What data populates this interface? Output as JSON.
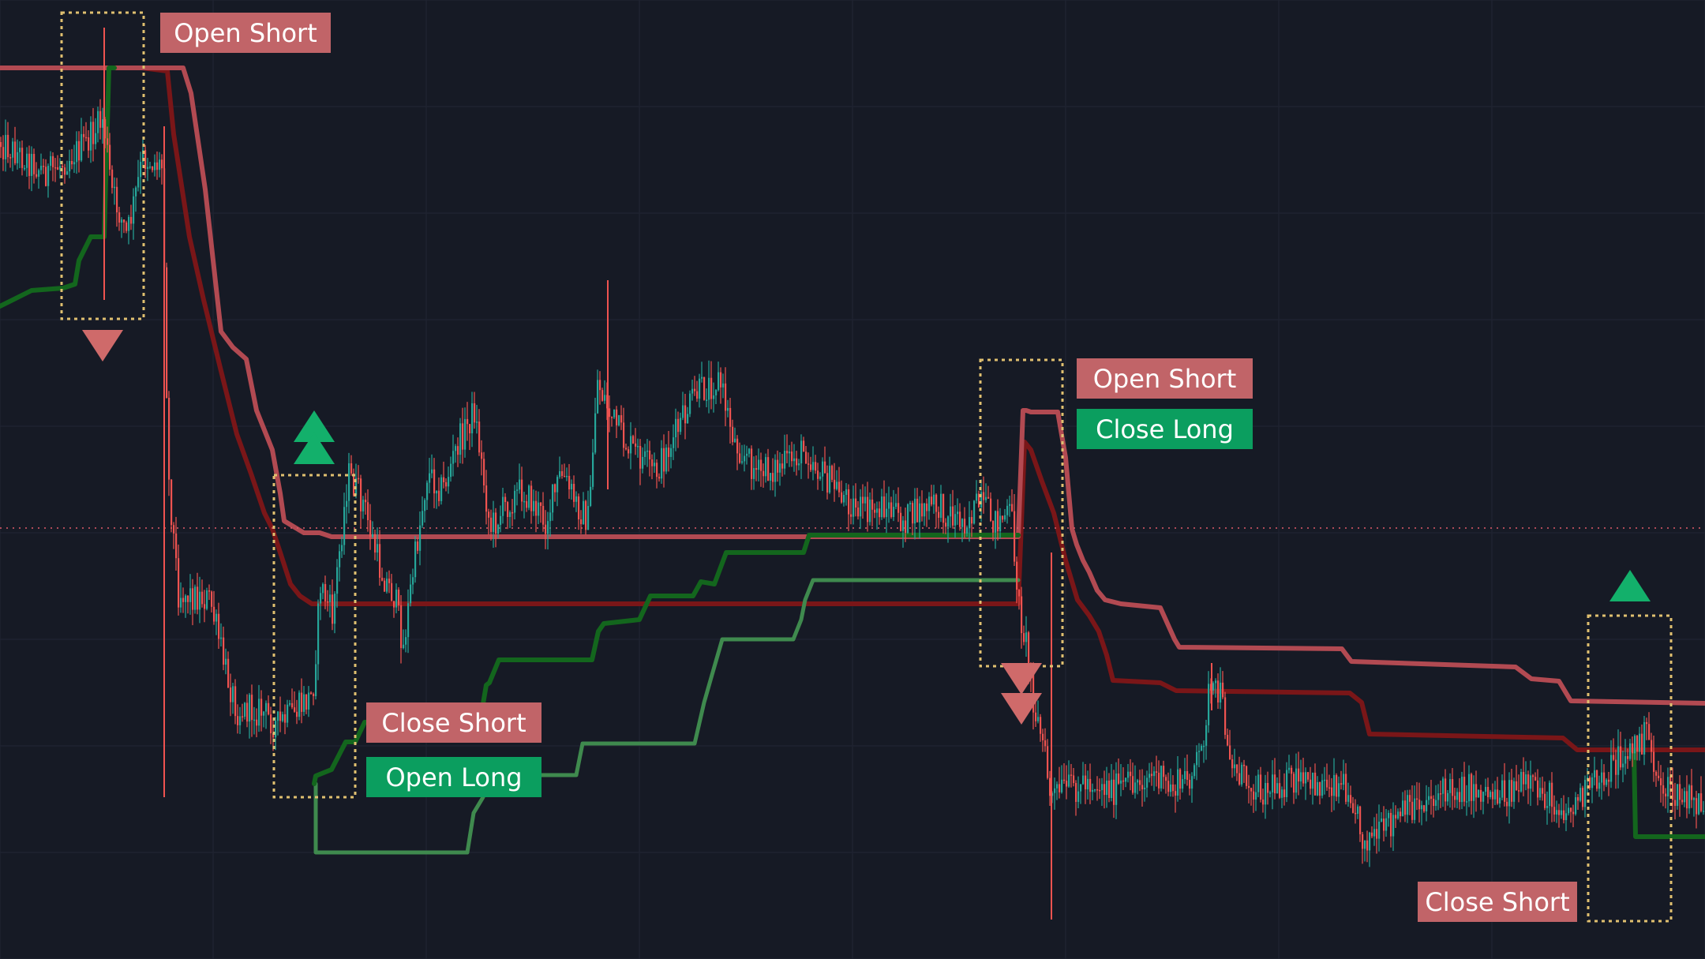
{
  "theme": {
    "background": "#161a25",
    "grid": "#1f2330",
    "up_candle": "#26a69a",
    "down_candle": "#ef5350",
    "bright_red": "#b24a52",
    "dark_red": "#7a1618",
    "bright_green": "#3f8a4e",
    "dark_green": "#13661d",
    "box_border": "#e0c070",
    "signal_red": "#cf6a6a",
    "signal_green": "#13b06b",
    "label_red_bg": "#c16468",
    "label_green_bg": "#0b9e5f",
    "label_text": "#ffffff"
  },
  "labels": [
    {
      "text": "Open Short",
      "kind": "red"
    },
    {
      "text": "Open Short",
      "kind": "red"
    },
    {
      "text": "Close Long",
      "kind": "green"
    },
    {
      "text": "Close Short",
      "kind": "red"
    },
    {
      "text": "Open Long",
      "kind": "green"
    },
    {
      "text": "Close Short",
      "kind": "red"
    }
  ],
  "chart_data": {
    "type": "candlestick",
    "title": "",
    "grid": true,
    "series": [
      {
        "style": "candles"
      },
      {
        "style": "upper-band-bright",
        "color": "#b24a52"
      },
      {
        "style": "upper-band-dark",
        "color": "#7a1618"
      },
      {
        "style": "lower-band-bright",
        "color": "#3f8a4e"
      },
      {
        "style": "lower-band-dark",
        "color": "#13661d"
      }
    ],
    "signals": [
      {
        "type": "sell",
        "labels": [
          "Open Short"
        ]
      },
      {
        "type": "buy",
        "labels": [
          "Close Short",
          "Open Long"
        ]
      },
      {
        "type": "sell",
        "labels": [
          "Open Short",
          "Close Long"
        ]
      },
      {
        "type": "buy",
        "labels": [
          "Close Short"
        ]
      }
    ]
  }
}
